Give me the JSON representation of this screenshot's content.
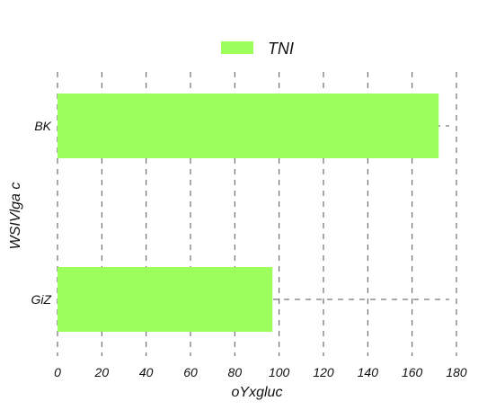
{
  "chart_data": {
    "type": "bar",
    "orientation": "horizontal",
    "categories": [
      "BK",
      "GiZ"
    ],
    "series": [
      {
        "name": "TNI",
        "values": [
          172,
          97
        ],
        "color": "#9cff5c"
      }
    ],
    "xlabel": "oYxgluc",
    "ylabel": "WSIVlga c",
    "xlim": [
      0,
      180
    ],
    "xticks": [
      0,
      20,
      40,
      60,
      80,
      100,
      120,
      140,
      160,
      180
    ],
    "grid": true,
    "legend": {
      "position": "top-center"
    }
  }
}
